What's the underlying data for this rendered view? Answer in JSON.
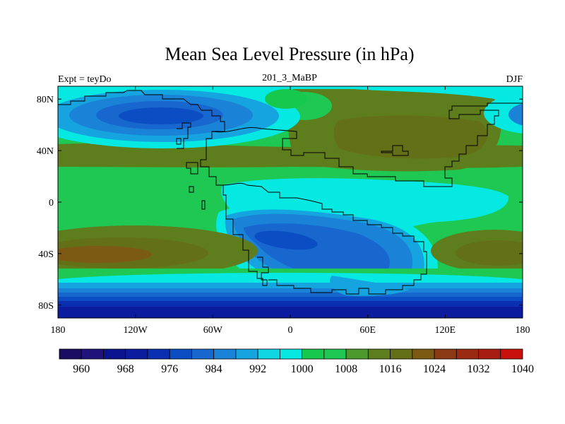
{
  "title": "Mean Sea Level Pressure (in hPa)",
  "subtitle_left": "Expt = teyDo",
  "subtitle_center": "201_3_MaBP",
  "subtitle_right": "DJF",
  "chart_data": {
    "type": "heatmap",
    "variable": "Mean Sea Level Pressure",
    "units": "hPa",
    "x_range": [
      -180,
      180
    ],
    "y_range": [
      -90,
      90
    ],
    "x_ticks": [
      {
        "value": -180,
        "label": "180"
      },
      {
        "value": -120,
        "label": "120W"
      },
      {
        "value": -60,
        "label": "60W"
      },
      {
        "value": 0,
        "label": "0"
      },
      {
        "value": 60,
        "label": "60E"
      },
      {
        "value": 120,
        "label": "120E"
      },
      {
        "value": 180,
        "label": "180"
      }
    ],
    "y_ticks": [
      {
        "value": 80,
        "label": "80N"
      },
      {
        "value": 40,
        "label": "40N"
      },
      {
        "value": 0,
        "label": "0"
      },
      {
        "value": -40,
        "label": "40S"
      },
      {
        "value": -80,
        "label": "80S"
      }
    ],
    "levels": [
      958,
      960,
      962,
      964,
      966,
      968,
      970,
      972,
      974,
      976,
      978,
      980,
      982,
      984,
      986,
      988,
      990,
      992,
      994,
      996,
      998,
      1000,
      1002,
      1004,
      1006,
      1008,
      1010,
      1012,
      1014,
      1016,
      1018,
      1020,
      1022,
      1024,
      1026,
      1028,
      1030,
      1032,
      1034,
      1036,
      1038,
      1040,
      1042
    ],
    "colorbar_labels": [
      960,
      968,
      976,
      984,
      992,
      1000,
      1008,
      1016,
      1024,
      1032,
      1040
    ],
    "colorbar_boxes": [
      {
        "value": 960,
        "color": "#1a0c63"
      },
      {
        "value": 964,
        "color": "#1f127b"
      },
      {
        "value": 968,
        "color": "#0b148f"
      },
      {
        "value": 972,
        "color": "#0c1c9e"
      },
      {
        "value": 976,
        "color": "#0a2fb0"
      },
      {
        "value": 980,
        "color": "#0b4ec3"
      },
      {
        "value": 984,
        "color": "#1767cf"
      },
      {
        "value": 988,
        "color": "#1a82d7"
      },
      {
        "value": 992,
        "color": "#15a4df"
      },
      {
        "value": 996,
        "color": "#10d6e4"
      },
      {
        "value": 1000,
        "color": "#06e8e2"
      },
      {
        "value": 1004,
        "color": "#16c84e"
      },
      {
        "value": 1008,
        "color": "#1ec853"
      },
      {
        "value": 1012,
        "color": "#4c9a2e"
      },
      {
        "value": 1016,
        "color": "#5e7e1e"
      },
      {
        "value": 1020,
        "color": "#637018"
      },
      {
        "value": 1024,
        "color": "#7c5a14"
      },
      {
        "value": 1028,
        "color": "#8c3a14"
      },
      {
        "value": 1032,
        "color": "#9a2a12"
      },
      {
        "value": 1036,
        "color": "#a81d12"
      },
      {
        "value": 1040,
        "color": "#c8100c"
      }
    ],
    "field_features": [
      {
        "name": "north-pacific-low",
        "center": [
          -125,
          66
        ],
        "depth_hpa": 984
      },
      {
        "name": "arctic-low",
        "center": [
          -60,
          78
        ],
        "depth_hpa": 1002
      },
      {
        "name": "north-atlantic-high",
        "center": [
          25,
          70
        ],
        "depth_hpa": 1016
      },
      {
        "name": "asian-high",
        "center": [
          85,
          52
        ],
        "depth_hpa": 1016
      },
      {
        "name": "sub-tropical-high-belt",
        "center": [
          0,
          30
        ],
        "depth_hpa": 1014
      },
      {
        "name": "equatorial-trough",
        "center": [
          40,
          2
        ],
        "depth_hpa": 1000
      },
      {
        "name": "southern-continent-low",
        "center": [
          25,
          -38
        ],
        "depth_hpa": 986
      },
      {
        "name": "south-pacific-high",
        "center": [
          -140,
          -40
        ],
        "depth_hpa": 1024
      },
      {
        "name": "south-indian-high",
        "center": [
          160,
          -38
        ],
        "depth_hpa": 1020
      },
      {
        "name": "antarctic-trough",
        "center": [
          0,
          -82
        ],
        "depth_hpa": 972
      }
    ]
  }
}
